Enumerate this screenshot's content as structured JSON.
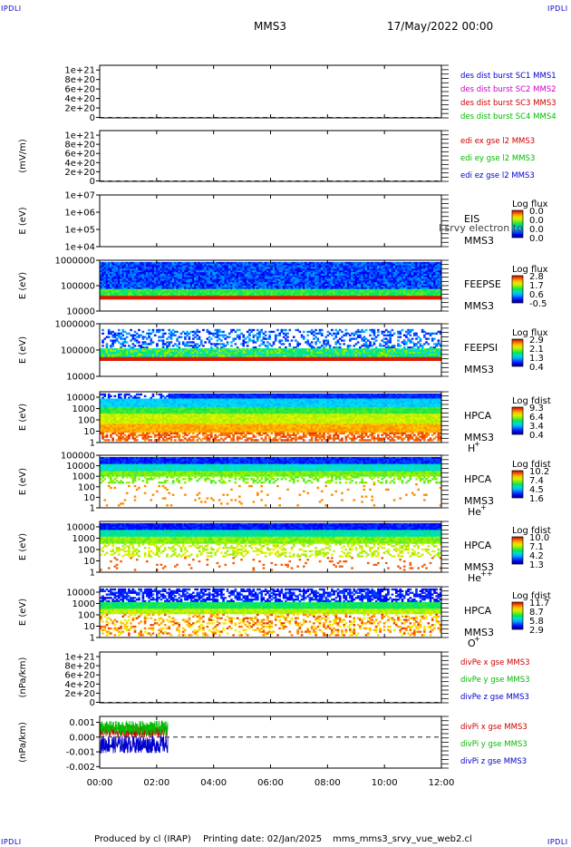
{
  "header": {
    "title": "MMS3",
    "datetime": "17/May/2022 00:00"
  },
  "corner_tag": "IPDLI",
  "footer": {
    "producer": "Produced by cl (IRAP)",
    "printing": "Printing date: 02/Jan/2025",
    "file": "mms_mms3_srvy_vue_web2.cl"
  },
  "chart_data": {
    "type": "multi-panel",
    "time_axis": {
      "start": "00:00",
      "end": "12:00",
      "tick_labels": [
        "00:00",
        "02:00",
        "04:00",
        "06:00",
        "08:00",
        "10:00",
        "12:00"
      ],
      "tick_hours": [
        0,
        2,
        4,
        6,
        8,
        10,
        12
      ]
    },
    "panels": [
      {
        "id": "des-dist",
        "kind": "line",
        "ylabel": "",
        "yticks": [
          "1e+21",
          "8e+20",
          "6e+20",
          "4e+20",
          "2e+20",
          "0"
        ],
        "ytick_values": [
          1e+21,
          8e+20,
          6e+20,
          4e+20,
          2e+20,
          0
        ],
        "ylim": [
          -1e+19,
          1.1e+21
        ],
        "zero_line": true,
        "legend": [
          {
            "text": "des dist burst SC1 MMS1",
            "color": "#0000cc"
          },
          {
            "text": "des dist burst SC2 MMS2",
            "color": "#cc00cc"
          },
          {
            "text": "des dist burst SC3 MMS3",
            "color": "#cc0000"
          },
          {
            "text": "des dist burst SC4 MMS4",
            "color": "#00bb00"
          }
        ]
      },
      {
        "id": "edi-e",
        "kind": "line",
        "ylabel": "(mV/m)",
        "yticks": [
          "1e+21",
          "8e+20",
          "6e+20",
          "4e+20",
          "2e+20",
          "0"
        ],
        "ytick_values": [
          1e+21,
          8e+20,
          6e+20,
          4e+20,
          2e+20,
          0
        ],
        "ylim": [
          -1e+19,
          1.1e+21
        ],
        "zero_line": true,
        "legend": [
          {
            "text": "edi ex gse l2 MMS3",
            "color": "#cc0000"
          },
          {
            "text": "edi ey gse l2 MMS3",
            "color": "#00bb00"
          },
          {
            "text": "edi ez gse l2 MMS3",
            "color": "#0000cc"
          }
        ]
      },
      {
        "id": "eis",
        "kind": "spectrogram",
        "ylabel": "E (eV)",
        "yticks": [
          "1e+07",
          "1e+06",
          "1e+05",
          "1e+04"
        ],
        "ytick_values": [
          10000000.0,
          1000000.0,
          100000.0,
          10000.0
        ],
        "ylim": [
          10000.0,
          10000000.0
        ],
        "log": true,
        "instrument": [
          "EIS",
          "MMS3"
        ],
        "overlay_text": "l srvy electron to",
        "cbar_title": "Log flux",
        "cbar_ticks": [
          "0.0",
          "0.0",
          "0.0",
          "0.0"
        ],
        "pattern": "empty"
      },
      {
        "id": "feeps-e",
        "kind": "spectrogram",
        "ylabel": "E (eV)",
        "yticks": [
          "1000000",
          "100000",
          "10000"
        ],
        "ytick_values": [
          1000000.0,
          100000.0,
          10000.0
        ],
        "ylim": [
          10000.0,
          1000000.0
        ],
        "log": true,
        "instrument": [
          "FEEPSE",
          "MMS3"
        ],
        "cbar_title": "Log flux",
        "cbar_ticks": [
          "2.8",
          "1.7",
          "0.6",
          "-0.5"
        ],
        "pattern": "feepse"
      },
      {
        "id": "feeps-i",
        "kind": "spectrogram",
        "ylabel": "E (eV)",
        "yticks": [
          "1000000",
          "100000",
          "10000"
        ],
        "ytick_values": [
          1000000.0,
          100000.0,
          10000.0
        ],
        "ylim": [
          10000.0,
          1000000.0
        ],
        "log": true,
        "instrument": [
          "FEEPSI",
          "MMS3"
        ],
        "cbar_title": "Log flux",
        "cbar_ticks": [
          "2.9",
          "2.1",
          "1.3",
          "0.4"
        ],
        "pattern": "feepsi"
      },
      {
        "id": "hpca-h",
        "kind": "spectrogram",
        "ylabel": "E (eV)",
        "yticks": [
          "10000",
          "1000",
          "100",
          "10",
          "1"
        ],
        "ytick_values": [
          10000.0,
          1000.0,
          100.0,
          10.0,
          1
        ],
        "ylim": [
          1,
          30000.0
        ],
        "log": true,
        "instrument": [
          "HPCA",
          "MMS3"
        ],
        "species": "H",
        "species_sup": "+",
        "cbar_title": "Log fdist",
        "cbar_ticks": [
          "9.3",
          "6.4",
          "3.4",
          "0.4"
        ],
        "pattern": "hpca_h"
      },
      {
        "id": "hpca-he",
        "kind": "spectrogram",
        "ylabel": "E (eV)",
        "yticks": [
          "100000",
          "10000",
          "1000",
          "100",
          "10",
          "1"
        ],
        "ytick_values": [
          100000.0,
          10000.0,
          1000.0,
          100.0,
          10.0,
          1
        ],
        "ylim": [
          1,
          100000.0
        ],
        "log": true,
        "instrument": [
          "HPCA",
          "MMS3"
        ],
        "species": "He",
        "species_sup": "+",
        "cbar_title": "Log fdist",
        "cbar_ticks": [
          "10.2",
          "7.4",
          "4.5",
          "1.6"
        ],
        "pattern": "hpca_he"
      },
      {
        "id": "hpca-hepp",
        "kind": "spectrogram",
        "ylabel": "E (eV)",
        "yticks": [
          "10000",
          "1000",
          "100",
          "10",
          "1"
        ],
        "ytick_values": [
          10000.0,
          1000.0,
          100.0,
          10.0,
          1
        ],
        "ylim": [
          1,
          30000.0
        ],
        "log": true,
        "instrument": [
          "HPCA",
          "MMS3"
        ],
        "species": "He",
        "species_sup": "++",
        "cbar_title": "Log fdist",
        "cbar_ticks": [
          "10.0",
          "7.1",
          "4.2",
          "1.3"
        ],
        "pattern": "hpca_hepp"
      },
      {
        "id": "hpca-o",
        "kind": "spectrogram",
        "ylabel": "E (eV)",
        "yticks": [
          "10000",
          "1000",
          "100",
          "10",
          "1"
        ],
        "ytick_values": [
          10000.0,
          1000.0,
          100.0,
          10.0,
          1
        ],
        "ylim": [
          1,
          30000.0
        ],
        "log": true,
        "instrument": [
          "HPCA",
          "MMS3"
        ],
        "species": "O",
        "species_sup": "+",
        "cbar_title": "Log fdist",
        "cbar_ticks": [
          "11.7",
          "8.7",
          "5.8",
          "2.9"
        ],
        "pattern": "hpca_o"
      },
      {
        "id": "divpe",
        "kind": "line",
        "ylabel": "(nPa/km)",
        "yticks": [
          "1e+21",
          "8e+20",
          "6e+20",
          "4e+20",
          "2e+20",
          "0"
        ],
        "ytick_values": [
          1e+21,
          8e+20,
          6e+20,
          4e+20,
          2e+20,
          0
        ],
        "ylim": [
          -1e+19,
          1.1e+21
        ],
        "zero_line": true,
        "legend": [
          {
            "text": "divPe x gse MMS3",
            "color": "#cc0000"
          },
          {
            "text": "divPe y gse MMS3",
            "color": "#00bb00"
          },
          {
            "text": "divPe z gse MMS3",
            "color": "#0000cc"
          }
        ]
      },
      {
        "id": "divpi",
        "kind": "line",
        "ylabel": "(nPa/km)",
        "yticks": [
          "0.001",
          "0.000",
          "-0.001",
          "-0.002"
        ],
        "ytick_values": [
          0.001,
          0,
          -0.001,
          -0.002
        ],
        "ylim": [
          -0.0021,
          0.0014
        ],
        "zero_line": true,
        "legend": [
          {
            "text": "divPi x gse MMS3",
            "color": "#cc0000"
          },
          {
            "text": "divPi y gse MMS3",
            "color": "#00bb00"
          },
          {
            "text": "divPi z gse MMS3",
            "color": "#0000cc"
          }
        ],
        "series": [
          {
            "name": "divPi x gse MMS3",
            "color": "#cc0000",
            "t_range": [
              0,
              2.4
            ],
            "center": 0.0004,
            "spread": 0.0004
          },
          {
            "name": "divPi y gse MMS3",
            "color": "#00bb00",
            "t_range": [
              0,
              2.4
            ],
            "center": 0.0006,
            "spread": 0.0005
          },
          {
            "name": "divPi z gse MMS3",
            "color": "#0000cc",
            "t_range": [
              0,
              2.4
            ],
            "center": -0.0005,
            "spread": 0.0006
          }
        ]
      }
    ]
  }
}
